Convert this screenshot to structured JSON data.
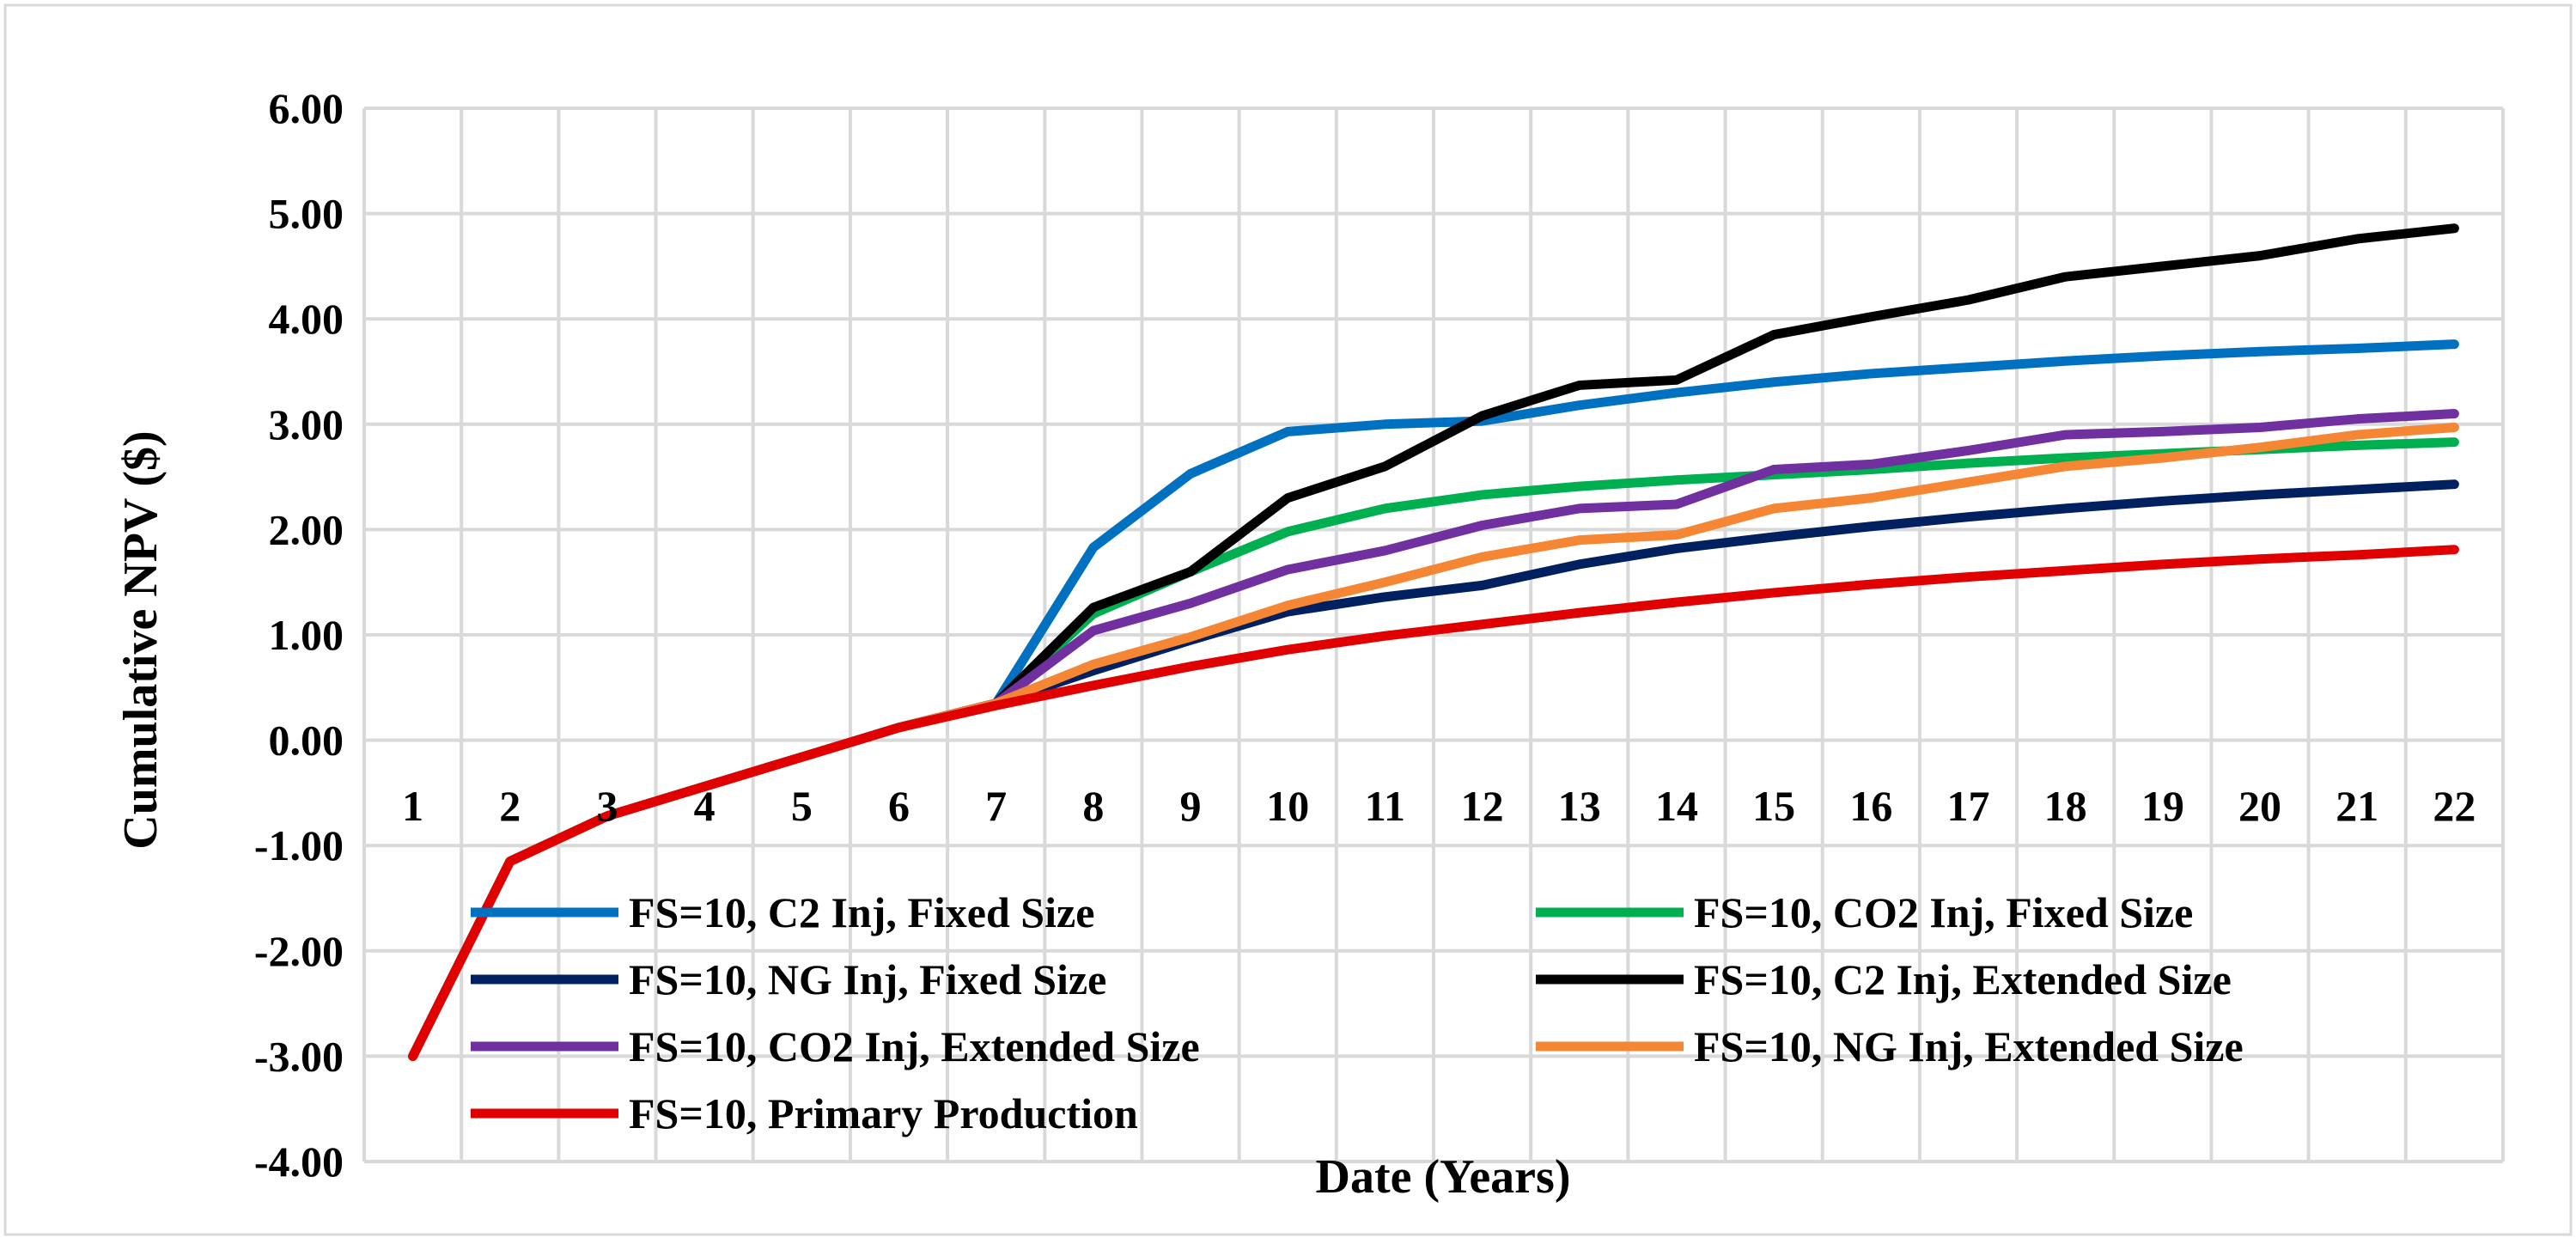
{
  "chart_data": {
    "type": "line",
    "title": "",
    "xlabel": "Date (Years)",
    "ylabel": "Cumulative NPV ($)",
    "ylim": [
      -4,
      6
    ],
    "y_ticks": [
      "6.00",
      "5.00",
      "4.00",
      "3.00",
      "2.00",
      "1.00",
      "0.00",
      "-1.00",
      "-2.00",
      "-3.00",
      "-4.00"
    ],
    "y_tick_values": [
      6,
      5,
      4,
      3,
      2,
      1,
      0,
      -1,
      -2,
      -3,
      -4
    ],
    "categories": [
      "1",
      "2",
      "3",
      "4",
      "5",
      "6",
      "7",
      "8",
      "9",
      "10",
      "11",
      "12",
      "13",
      "14",
      "15",
      "16",
      "17",
      "18",
      "19",
      "20",
      "21",
      "22"
    ],
    "grid": true,
    "legend_position": "lower-center",
    "series": [
      {
        "name": "FS=10, C2 Inj, Fixed Size",
        "color": "#0070C0",
        "values": [
          -3.0,
          -1.15,
          -0.72,
          -0.44,
          -0.16,
          0.12,
          0.35,
          1.83,
          2.53,
          2.93,
          3.0,
          3.03,
          3.18,
          3.3,
          3.4,
          3.48,
          3.54,
          3.6,
          3.65,
          3.69,
          3.72,
          3.76
        ]
      },
      {
        "name": "FS=10, CO2 Inj, Fixed Size",
        "color": "#00B050",
        "values": [
          -3.0,
          -1.15,
          -0.72,
          -0.44,
          -0.16,
          0.12,
          0.35,
          1.2,
          1.6,
          1.98,
          2.2,
          2.33,
          2.41,
          2.47,
          2.52,
          2.57,
          2.63,
          2.68,
          2.72,
          2.76,
          2.8,
          2.83
        ]
      },
      {
        "name": "FS=10, NG Inj, Fixed Size",
        "color": "#002060",
        "values": [
          -3.0,
          -1.15,
          -0.72,
          -0.44,
          -0.16,
          0.12,
          0.35,
          0.66,
          0.95,
          1.22,
          1.36,
          1.47,
          1.67,
          1.82,
          1.93,
          2.03,
          2.12,
          2.2,
          2.27,
          2.33,
          2.38,
          2.43
        ]
      },
      {
        "name": "FS=10, C2 Inj, Extended Size",
        "color": "#000000",
        "values": [
          -3.0,
          -1.15,
          -0.72,
          -0.44,
          -0.16,
          0.12,
          0.35,
          1.26,
          1.6,
          2.3,
          2.6,
          3.08,
          3.37,
          3.42,
          3.85,
          4.02,
          4.18,
          4.4,
          4.5,
          4.6,
          4.76,
          4.86
        ]
      },
      {
        "name": "FS=10, CO2 Inj, Extended Size",
        "color": "#7030A0",
        "values": [
          -3.0,
          -1.15,
          -0.72,
          -0.44,
          -0.16,
          0.12,
          0.35,
          1.04,
          1.3,
          1.62,
          1.8,
          2.04,
          2.2,
          2.24,
          2.57,
          2.62,
          2.75,
          2.9,
          2.93,
          2.97,
          3.05,
          3.1
        ]
      },
      {
        "name": "FS=10, NG Inj, Extended Size",
        "color": "#F58634",
        "values": [
          -3.0,
          -1.15,
          -0.72,
          -0.44,
          -0.16,
          0.12,
          0.35,
          0.72,
          0.98,
          1.28,
          1.5,
          1.74,
          1.9,
          1.95,
          2.2,
          2.3,
          2.45,
          2.6,
          2.68,
          2.78,
          2.9,
          2.97
        ]
      },
      {
        "name": "FS=10, Primary Production",
        "color": "#E00000",
        "values": [
          -3.0,
          -1.15,
          -0.72,
          -0.44,
          -0.16,
          0.12,
          0.33,
          0.52,
          0.7,
          0.86,
          0.99,
          1.1,
          1.21,
          1.31,
          1.4,
          1.48,
          1.55,
          1.61,
          1.67,
          1.72,
          1.76,
          1.81
        ]
      }
    ]
  }
}
